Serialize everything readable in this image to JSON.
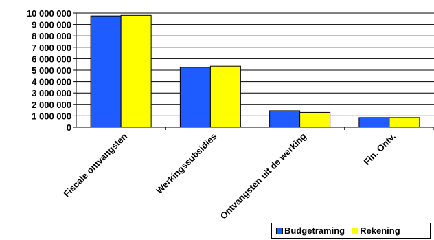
{
  "chart_data": {
    "type": "bar",
    "categories": [
      "Fiscale ontvangsten",
      "Werkingssubsidies",
      "Ontvangsten uit de werking",
      "Fin. Ontv."
    ],
    "series": [
      {
        "name": "Budgetraming",
        "color": "#1f5cff",
        "values": [
          9750000,
          5250000,
          1450000,
          850000
        ]
      },
      {
        "name": "Rekening",
        "color": "#ffff00",
        "values": [
          9800000,
          5350000,
          1300000,
          850000
        ]
      }
    ],
    "y_ticks": [
      "0",
      "1 000 000",
      "2 000 000",
      "3 000 000",
      "4 000 000",
      "5 000 000",
      "6 000 000",
      "7 000 000",
      "8 000 000",
      "9 000 000",
      "10 000 000"
    ],
    "ylim": [
      0,
      10000000
    ],
    "grid": true,
    "legend_position": "bottom-right"
  }
}
